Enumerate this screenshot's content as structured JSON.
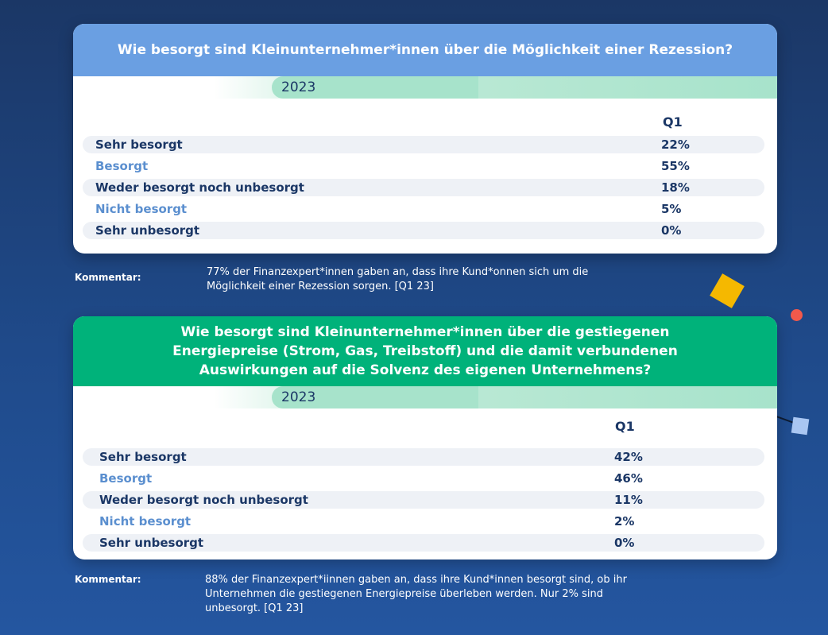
{
  "chart_data": [
    {
      "type": "table",
      "title": "Wie besorgt sind Kleinunternehmer*innen über die Möglichkeit einer Rezession?",
      "year": "2023",
      "column": "Q1",
      "categories": [
        "Sehr besorgt",
        "Besorgt",
        "Weder besorgt noch unbesorgt",
        "Nicht besorgt",
        "Sehr unbesorgt"
      ],
      "values": [
        22,
        55,
        18,
        5,
        0
      ],
      "value_labels": [
        "22%",
        "55%",
        "18%",
        "5%",
        "0%"
      ],
      "comment_label": "Kommentar:",
      "comment_lines": [
        "77% der Finanzexpert*innen gaben an, dass ihre Kund*onnen sich um die",
        "Möglichkeit einer Rezession sorgen. [Q1 23]"
      ]
    },
    {
      "type": "table",
      "title_lines": [
        "Wie besorgt sind Kleinunternehmer*innen über die gestiegenen",
        "Energiepreise (Strom, Gas, Treibstoff) und die damit verbundenen",
        "Auswirkungen auf die Solvenz des eigenen Unternehmens?"
      ],
      "year": "2023",
      "column": "Q1",
      "categories": [
        "Sehr besorgt",
        "Besorgt",
        "Weder besorgt noch unbesorgt",
        "Nicht besorgt",
        "Sehr unbesorgt"
      ],
      "values": [
        42,
        46,
        11,
        2,
        0
      ],
      "value_labels": [
        "42%",
        "46%",
        "11%",
        "2%",
        "0%"
      ],
      "comment_label": "Kommentar:",
      "comment_lines": [
        "88% der Finanzexpert*iinnen gaben an, dass ihre Kund*innen besorgt sind, ob ihr",
        "Unternehmen die gestiegenen Energiepreise überleben werden. Nur 2% sind",
        "unbesorgt. [Q1 23]"
      ]
    }
  ],
  "colors": {
    "header1": "#6a9fe2",
    "header2": "#00b27a",
    "accent_yellow": "#f5b800",
    "accent_red": "#f2594b",
    "accent_lightblue": "#a9c6f2"
  }
}
